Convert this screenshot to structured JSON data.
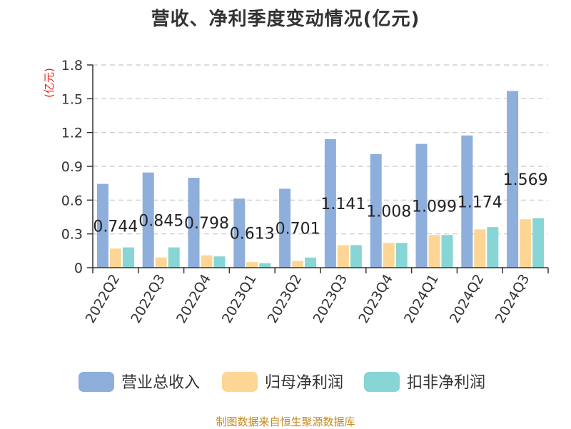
{
  "chart_data": {
    "type": "bar",
    "title": "营收、净利季度变动情况(亿元)",
    "unit_label": "(亿元)",
    "categories": [
      "2022Q2",
      "2022Q3",
      "2022Q4",
      "2023Q1",
      "2023Q2",
      "2023Q3",
      "2023Q4",
      "2024Q1",
      "2024Q2",
      "2024Q3"
    ],
    "ylim": [
      0,
      1.8
    ],
    "yticks": [
      "0",
      "0.3",
      "0.6",
      "0.9",
      "1.2",
      "1.5",
      "1.8"
    ],
    "grid": "horizontal dashed",
    "legend_position": "bottom",
    "series": [
      {
        "name": "营业总收入",
        "color": "#8eaedb",
        "values": [
          0.744,
          0.845,
          0.798,
          0.613,
          0.701,
          1.141,
          1.008,
          1.099,
          1.174,
          1.569
        ],
        "labels": [
          "0.744",
          "0.845",
          "0.798",
          "0.613",
          "0.701",
          "1.141",
          "1.008",
          "1.099",
          "1.174",
          "1.569"
        ]
      },
      {
        "name": "归母净利润",
        "color": "#fdd695",
        "values": [
          0.17,
          0.09,
          0.11,
          0.05,
          0.06,
          0.2,
          0.22,
          0.29,
          0.34,
          0.43
        ]
      },
      {
        "name": "扣非净利润",
        "color": "#87d5d4",
        "values": [
          0.18,
          0.18,
          0.1,
          0.04,
          0.09,
          0.2,
          0.22,
          0.29,
          0.36,
          0.44
        ]
      }
    ]
  },
  "source": "制图数据来自恒生聚源数据库"
}
